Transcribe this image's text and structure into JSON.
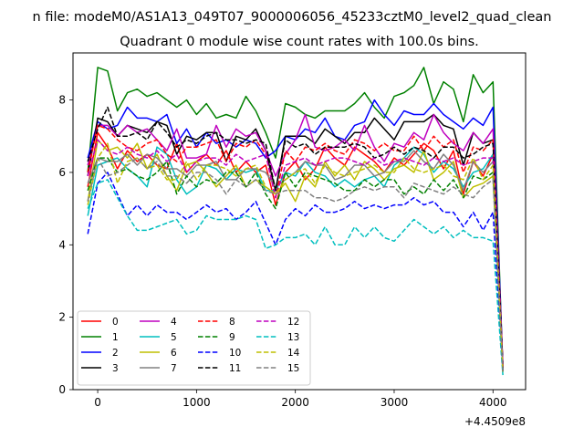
{
  "chart_data": {
    "type": "line",
    "suptitle": "n file: modeM0/AS1A13_049T07_9000006056_45233cztM0_level2_quad_clean",
    "title": "Quadrant 0 module wise count rates with 100.0s bins.",
    "xlabel": "",
    "ylabel": "",
    "x_offset_label": "+4.4509e8",
    "xlim": [
      -250,
      4330
    ],
    "ylim": [
      0,
      9.3
    ],
    "x_ticks": [
      0,
      1000,
      2000,
      3000,
      4000
    ],
    "x_tick_labels": [
      "0",
      "1000",
      "2000",
      "3000",
      "4000"
    ],
    "y_ticks": [
      0,
      2,
      4,
      6,
      8
    ],
    "y_tick_labels": [
      "0",
      "2",
      "4",
      "6",
      "8"
    ],
    "grid": false,
    "legend_position": "lower-left",
    "x": [
      -100,
      0,
      100,
      200,
      300,
      400,
      500,
      600,
      700,
      800,
      900,
      1000,
      1100,
      1200,
      1300,
      1400,
      1500,
      1600,
      1700,
      1800,
      1900,
      2000,
      2100,
      2200,
      2300,
      2400,
      2500,
      2600,
      2700,
      2800,
      2900,
      3000,
      3100,
      3200,
      3300,
      3400,
      3500,
      3600,
      3700,
      3800,
      3900,
      4000,
      4100
    ],
    "series": [
      {
        "name": "0",
        "color": "#ff0000",
        "dash": "solid",
        "values": [
          5.6,
          7.1,
          6.7,
          6.1,
          6.6,
          6.3,
          6.5,
          6.2,
          6.1,
          6.8,
          6.0,
          6.3,
          6.5,
          6.2,
          6.6,
          6.0,
          6.3,
          6.0,
          6.2,
          5.1,
          6.0,
          6.3,
          5.8,
          6.1,
          6.7,
          6.4,
          6.2,
          6.7,
          6.5,
          6.3,
          6.0,
          6.4,
          6.2,
          6.5,
          6.8,
          6.6,
          6.1,
          6.6,
          5.4,
          6.3,
          5.9,
          6.5,
          0.7
        ]
      },
      {
        "name": "1",
        "color": "#008000",
        "dash": "solid",
        "values": [
          6.0,
          8.9,
          8.8,
          7.7,
          8.2,
          8.3,
          8.1,
          8.2,
          8.0,
          7.8,
          8.0,
          7.6,
          7.9,
          7.5,
          7.6,
          7.5,
          8.1,
          7.7,
          7.1,
          6.4,
          7.9,
          7.8,
          7.6,
          7.5,
          7.7,
          7.7,
          7.7,
          7.9,
          8.2,
          7.8,
          7.5,
          8.1,
          8.2,
          8.4,
          8.9,
          7.9,
          8.5,
          8.3,
          7.4,
          8.7,
          8.2,
          8.5,
          0.5
        ]
      },
      {
        "name": "2",
        "color": "#0000ff",
        "dash": "solid",
        "values": [
          6.4,
          7.4,
          7.2,
          7.3,
          7.8,
          7.5,
          7.5,
          7.4,
          7.6,
          6.8,
          7.2,
          6.7,
          7.1,
          6.8,
          6.9,
          6.7,
          6.9,
          6.8,
          6.4,
          6.6,
          7.0,
          6.9,
          7.2,
          7.1,
          7.5,
          7.0,
          6.9,
          7.3,
          7.4,
          8.0,
          7.6,
          7.3,
          7.7,
          7.6,
          7.6,
          7.9,
          7.6,
          7.4,
          7.2,
          7.5,
          7.3,
          7.8,
          0.6
        ]
      },
      {
        "name": "3",
        "color": "#000000",
        "dash": "solid",
        "values": [
          5.9,
          7.5,
          7.4,
          7.0,
          7.3,
          7.2,
          7.1,
          7.4,
          7.3,
          6.5,
          7.0,
          6.9,
          7.1,
          7.1,
          6.3,
          7.0,
          6.9,
          7.2,
          6.6,
          5.5,
          7.0,
          7.0,
          7.0,
          6.8,
          7.2,
          7.0,
          6.8,
          7.1,
          7.1,
          7.5,
          7.2,
          6.9,
          7.4,
          7.4,
          7.4,
          7.6,
          7.3,
          7.2,
          6.2,
          7.1,
          6.8,
          6.9,
          0.6
        ]
      },
      {
        "name": "4",
        "color": "#bf00bf",
        "dash": "solid",
        "values": [
          6.2,
          7.3,
          7.3,
          7.0,
          7.3,
          7.1,
          7.2,
          6.9,
          6.6,
          7.2,
          6.4,
          6.4,
          6.5,
          7.3,
          6.7,
          7.2,
          7.0,
          7.1,
          6.6,
          5.9,
          6.5,
          6.9,
          7.6,
          6.7,
          6.6,
          6.7,
          6.9,
          6.6,
          7.3,
          6.7,
          6.3,
          6.8,
          6.7,
          7.1,
          6.9,
          7.6,
          7.1,
          6.8,
          6.6,
          7.1,
          6.8,
          7.2,
          0.6
        ]
      },
      {
        "name": "5",
        "color": "#00bfbf",
        "dash": "solid",
        "values": [
          4.8,
          6.2,
          6.3,
          6.4,
          6.1,
          5.9,
          5.6,
          6.7,
          6.5,
          5.8,
          5.4,
          5.6,
          6.2,
          6.1,
          5.8,
          6.1,
          6.0,
          6.1,
          5.5,
          5.5,
          6.0,
          5.9,
          6.3,
          6.0,
          5.9,
          5.6,
          5.8,
          5.6,
          5.8,
          5.9,
          5.6,
          6.2,
          6.4,
          6.7,
          6.5,
          6.0,
          6.3,
          6.1,
          5.6,
          6.0,
          6.1,
          6.5,
          0.5
        ]
      },
      {
        "name": "6",
        "color": "#bfbf00",
        "dash": "solid",
        "values": [
          5.2,
          6.9,
          6.6,
          6.7,
          6.4,
          6.8,
          6.1,
          6.5,
          5.9,
          5.5,
          6.2,
          6.3,
          6.0,
          5.6,
          5.9,
          6.2,
          5.6,
          5.8,
          5.6,
          5.4,
          5.7,
          5.2,
          5.9,
          5.6,
          6.3,
          5.9,
          6.2,
          5.8,
          6.3,
          6.1,
          5.8,
          6.1,
          6.2,
          6.0,
          6.6,
          5.8,
          6.0,
          6.3,
          5.3,
          5.6,
          5.7,
          5.9,
          0.5
        ]
      },
      {
        "name": "7",
        "color": "#808080",
        "dash": "solid",
        "values": [
          5.7,
          6.4,
          6.3,
          6.3,
          6.5,
          6.2,
          6.5,
          6.4,
          6.1,
          6.1,
          5.9,
          6.2,
          6.2,
          6.3,
          5.8,
          5.8,
          6.1,
          6.1,
          6.0,
          5.6,
          5.8,
          6.0,
          6.3,
          6.2,
          6.2,
          5.8,
          5.9,
          6.2,
          6.2,
          5.9,
          6.0,
          6.3,
          6.3,
          6.6,
          6.3,
          6.1,
          6.5,
          6.2,
          5.5,
          6.3,
          6.0,
          6.3,
          0.5
        ]
      },
      {
        "name": "8",
        "color": "#ff0000",
        "dash": "dashed",
        "values": [
          6.0,
          7.3,
          7.2,
          6.9,
          6.7,
          6.6,
          6.8,
          6.9,
          6.5,
          6.3,
          6.7,
          6.7,
          6.8,
          6.9,
          6.3,
          6.8,
          6.7,
          6.9,
          6.5,
          5.3,
          6.6,
          6.3,
          6.7,
          6.6,
          6.8,
          6.6,
          6.5,
          6.9,
          6.8,
          6.6,
          6.8,
          6.6,
          6.6,
          7.0,
          6.6,
          7.0,
          6.7,
          6.9,
          6.0,
          6.7,
          6.6,
          6.9,
          0.6
        ]
      },
      {
        "name": "9",
        "color": "#008000",
        "dash": "dashed",
        "values": [
          5.5,
          6.4,
          6.4,
          6.0,
          6.1,
          5.9,
          5.8,
          6.0,
          6.3,
          5.4,
          5.9,
          5.6,
          5.8,
          5.7,
          6.0,
          6.0,
          5.6,
          6.0,
          5.4,
          5.0,
          6.0,
          5.6,
          6.0,
          5.9,
          5.8,
          5.7,
          5.5,
          5.5,
          5.8,
          5.6,
          5.8,
          5.8,
          5.4,
          5.6,
          5.4,
          5.8,
          5.5,
          5.8,
          5.3,
          5.9,
          5.8,
          6.0,
          0.5
        ]
      },
      {
        "name": "10",
        "color": "#0000ff",
        "dash": "dashed",
        "values": [
          4.3,
          5.7,
          6.0,
          5.4,
          4.8,
          5.1,
          4.8,
          5.1,
          4.9,
          4.9,
          4.7,
          4.9,
          5.1,
          4.9,
          5.0,
          4.7,
          4.9,
          5.2,
          4.6,
          4.0,
          4.7,
          5.0,
          4.8,
          5.1,
          4.9,
          4.9,
          5.0,
          5.2,
          5.0,
          5.1,
          5.0,
          5.1,
          5.1,
          5.3,
          5.1,
          5.2,
          4.9,
          4.9,
          4.5,
          4.9,
          4.4,
          4.9,
          0.5
        ]
      },
      {
        "name": "11",
        "color": "#000000",
        "dash": "dashed",
        "values": [
          6.3,
          7.2,
          7.8,
          7.0,
          7.0,
          7.1,
          6.9,
          7.4,
          7.1,
          6.7,
          6.9,
          6.8,
          7.0,
          7.1,
          6.9,
          6.9,
          6.8,
          6.9,
          6.8,
          5.5,
          6.9,
          6.7,
          6.8,
          6.5,
          6.7,
          6.7,
          6.7,
          6.8,
          6.7,
          6.4,
          6.5,
          6.7,
          6.5,
          6.7,
          6.6,
          6.4,
          6.7,
          6.7,
          6.4,
          6.5,
          6.7,
          6.8,
          0.6
        ]
      },
      {
        "name": "12",
        "color": "#bf00bf",
        "dash": "dashed",
        "values": [
          5.9,
          6.9,
          6.6,
          6.5,
          6.7,
          6.5,
          6.4,
          6.6,
          6.3,
          6.5,
          6.0,
          6.3,
          6.4,
          6.4,
          6.2,
          6.5,
          6.3,
          6.4,
          6.5,
          5.3,
          6.2,
          6.3,
          6.4,
          6.2,
          6.3,
          6.4,
          6.4,
          6.3,
          6.2,
          6.4,
          6.2,
          6.3,
          6.4,
          6.3,
          6.2,
          6.4,
          6.3,
          6.4,
          6.2,
          6.3,
          6.4,
          6.4,
          0.6
        ]
      },
      {
        "name": "13",
        "color": "#00bfbf",
        "dash": "dashed",
        "values": [
          5.0,
          5.7,
          5.8,
          5.3,
          4.8,
          4.4,
          4.4,
          4.5,
          4.6,
          4.7,
          4.3,
          4.4,
          4.8,
          4.7,
          4.7,
          4.7,
          4.8,
          4.7,
          3.9,
          4.0,
          4.2,
          4.2,
          4.3,
          4.0,
          4.5,
          4.0,
          4.0,
          4.5,
          4.2,
          4.5,
          4.2,
          4.1,
          4.4,
          4.7,
          4.5,
          4.3,
          4.5,
          4.2,
          4.4,
          4.2,
          4.2,
          4.1,
          0.4
        ]
      },
      {
        "name": "14",
        "color": "#bfbf00",
        "dash": "dashed",
        "values": [
          5.1,
          6.4,
          6.8,
          5.7,
          6.3,
          6.4,
          6.1,
          6.2,
          5.8,
          5.8,
          6.3,
          5.8,
          6.2,
          6.2,
          6.1,
          5.9,
          6.1,
          6.2,
          5.6,
          5.4,
          5.8,
          6.0,
          6.1,
          5.7,
          6.2,
          6.0,
          5.9,
          6.0,
          6.1,
          6.2,
          6.0,
          6.0,
          6.4,
          6.1,
          6.0,
          6.1,
          6.2,
          5.9,
          5.8,
          6.4,
          5.8,
          6.2,
          0.5
        ]
      },
      {
        "name": "15",
        "color": "#808080",
        "dash": "dashed",
        "values": [
          5.2,
          6.4,
          5.9,
          6.0,
          6.2,
          6.4,
          6.1,
          6.3,
          5.9,
          5.9,
          5.7,
          6.0,
          6.0,
          5.8,
          5.4,
          5.8,
          5.6,
          5.8,
          5.5,
          5.4,
          5.5,
          5.5,
          5.5,
          5.3,
          5.3,
          5.2,
          5.3,
          5.5,
          5.6,
          5.5,
          5.6,
          5.6,
          5.3,
          5.7,
          5.6,
          5.5,
          5.4,
          5.6,
          5.4,
          5.3,
          5.6,
          5.8,
          0.5
        ]
      }
    ]
  }
}
